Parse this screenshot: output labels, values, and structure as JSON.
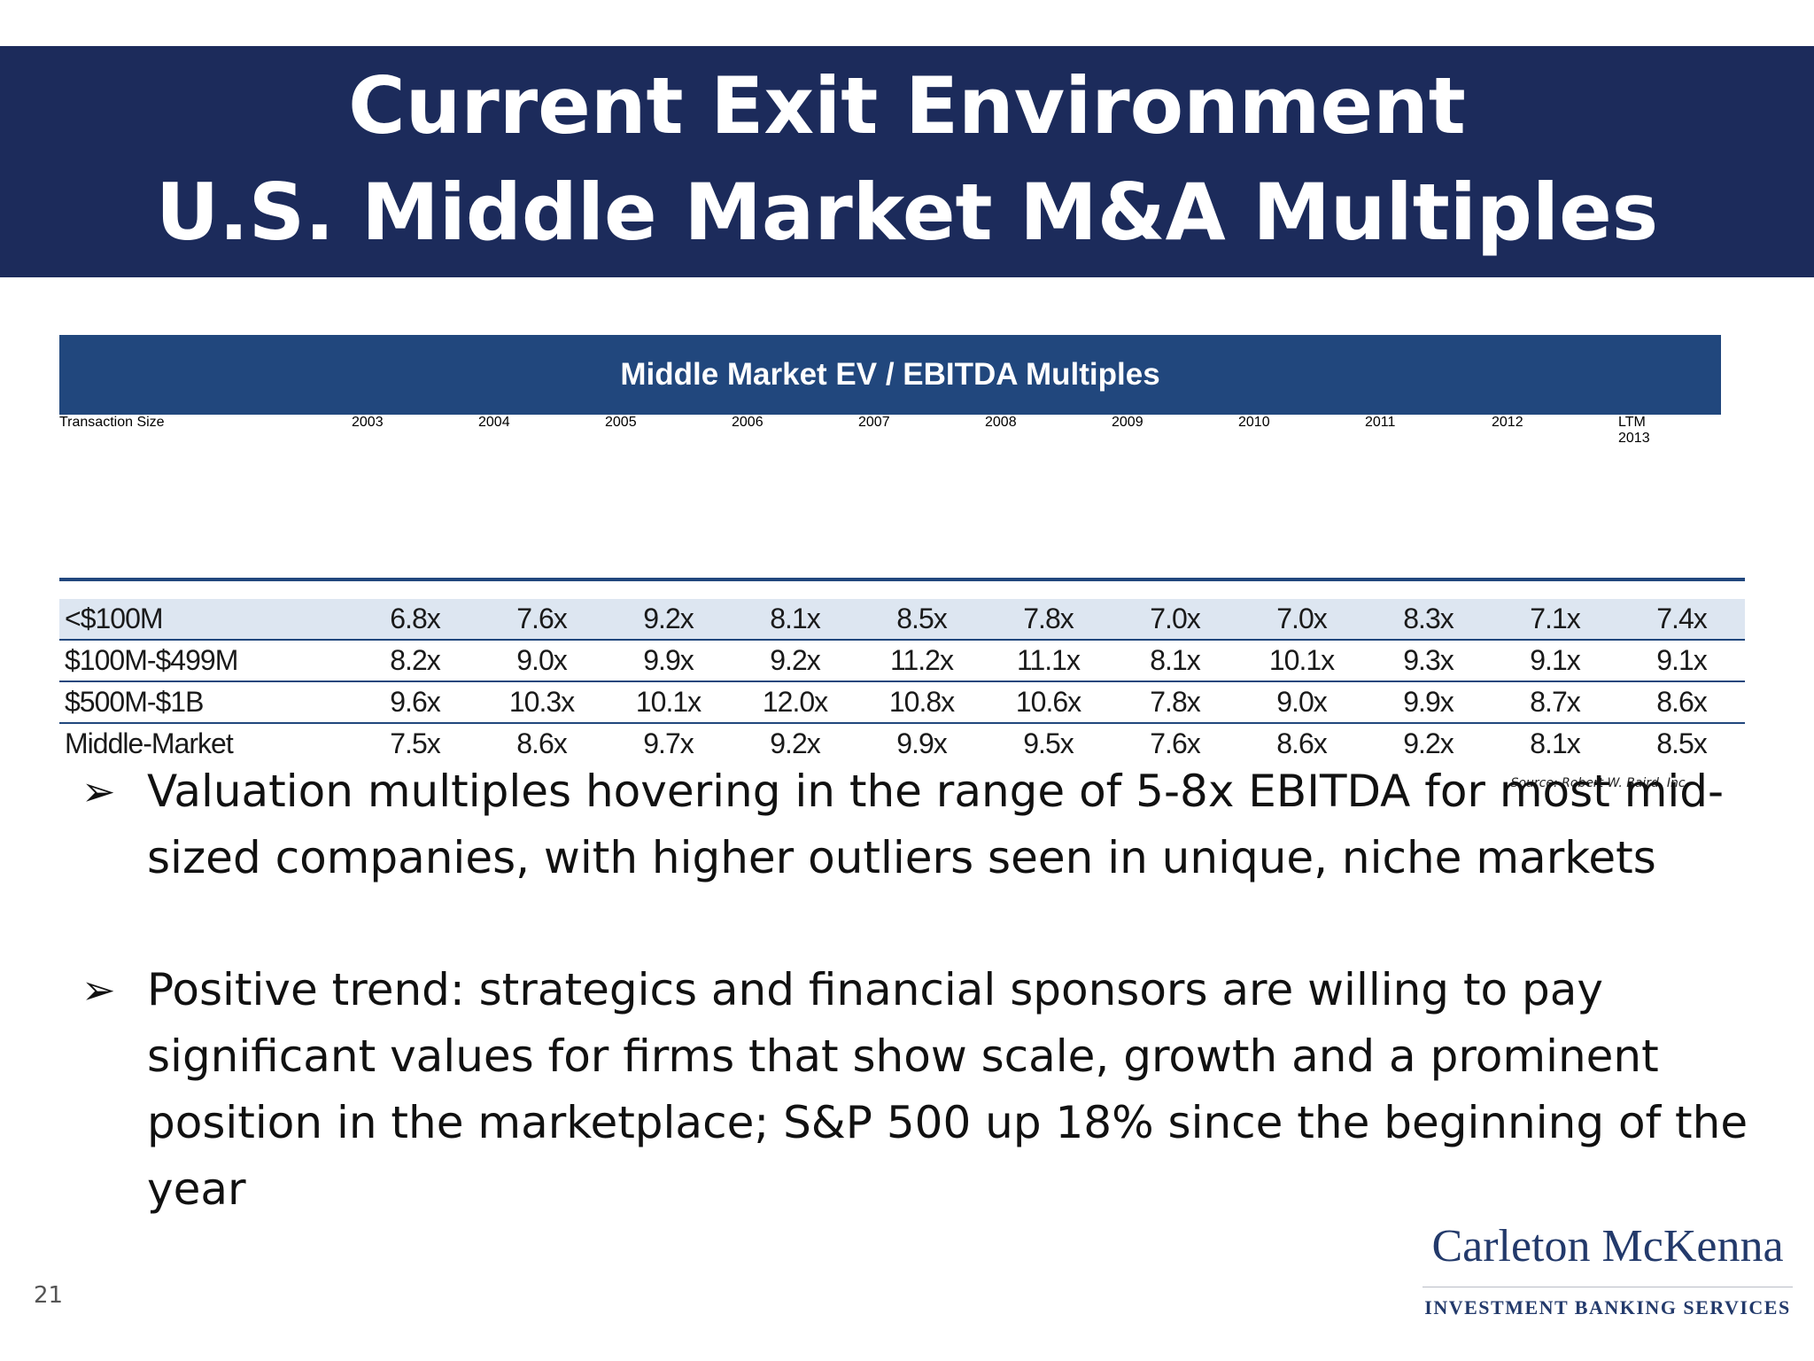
{
  "slide": {
    "title_line1": "Current Exit Environment",
    "title_line2": "U.S. Middle Market M&A Multiples",
    "page_number": "21"
  },
  "table": {
    "header": "Middle Market EV / EBITDA Multiples",
    "first_column_label": "Transaction Size",
    "year_prefix_last": "LTM",
    "years": [
      "2003",
      "2004",
      "2005",
      "2006",
      "2007",
      "2008",
      "2009",
      "2010",
      "2011",
      "2012",
      "2013"
    ],
    "rows": [
      {
        "label": "<$100M",
        "values": [
          "6.8x",
          "7.6x",
          "9.2x",
          "8.1x",
          "8.5x",
          "7.8x",
          "7.0x",
          "7.0x",
          "8.3x",
          "7.1x",
          "7.4x"
        ]
      },
      {
        "label": "$100M-$499M",
        "values": [
          "8.2x",
          "9.0x",
          "9.9x",
          "9.2x",
          "11.2x",
          "11.1x",
          "8.1x",
          "10.1x",
          "9.3x",
          "9.1x",
          "9.1x"
        ]
      },
      {
        "label": "$500M-$1B",
        "values": [
          "9.6x",
          "10.3x",
          "10.1x",
          "12.0x",
          "10.8x",
          "10.6x",
          "7.8x",
          "9.0x",
          "9.9x",
          "8.7x",
          "8.6x"
        ]
      },
      {
        "label": "Middle-Market",
        "values": [
          "7.5x",
          "8.6x",
          "9.7x",
          "9.2x",
          "9.9x",
          "9.5x",
          "7.6x",
          "8.6x",
          "9.2x",
          "8.1x",
          "8.5x"
        ]
      }
    ],
    "source": "Source: Robert W. Baird, Inc."
  },
  "bullets": [
    "Valuation multiples hovering in the range of 5-8x EBITDA for most mid-sized companies, with higher outliers seen in unique, niche markets",
    "Positive trend: strategics and financial sponsors are willing to pay significant values for firms that show scale, growth and a prominent position in the marketplace; S&P 500 up 18% since the beginning of the year"
  ],
  "logo": {
    "name": "Carleton McKenna",
    "tagline": "INVESTMENT BANKING SERVICES"
  },
  "colors": {
    "title_bar": "#1c2b5b",
    "table_header": "#21477d",
    "row_highlight": "#dde6f1"
  },
  "icons": {
    "bullet": "arrow-bullet-icon"
  }
}
